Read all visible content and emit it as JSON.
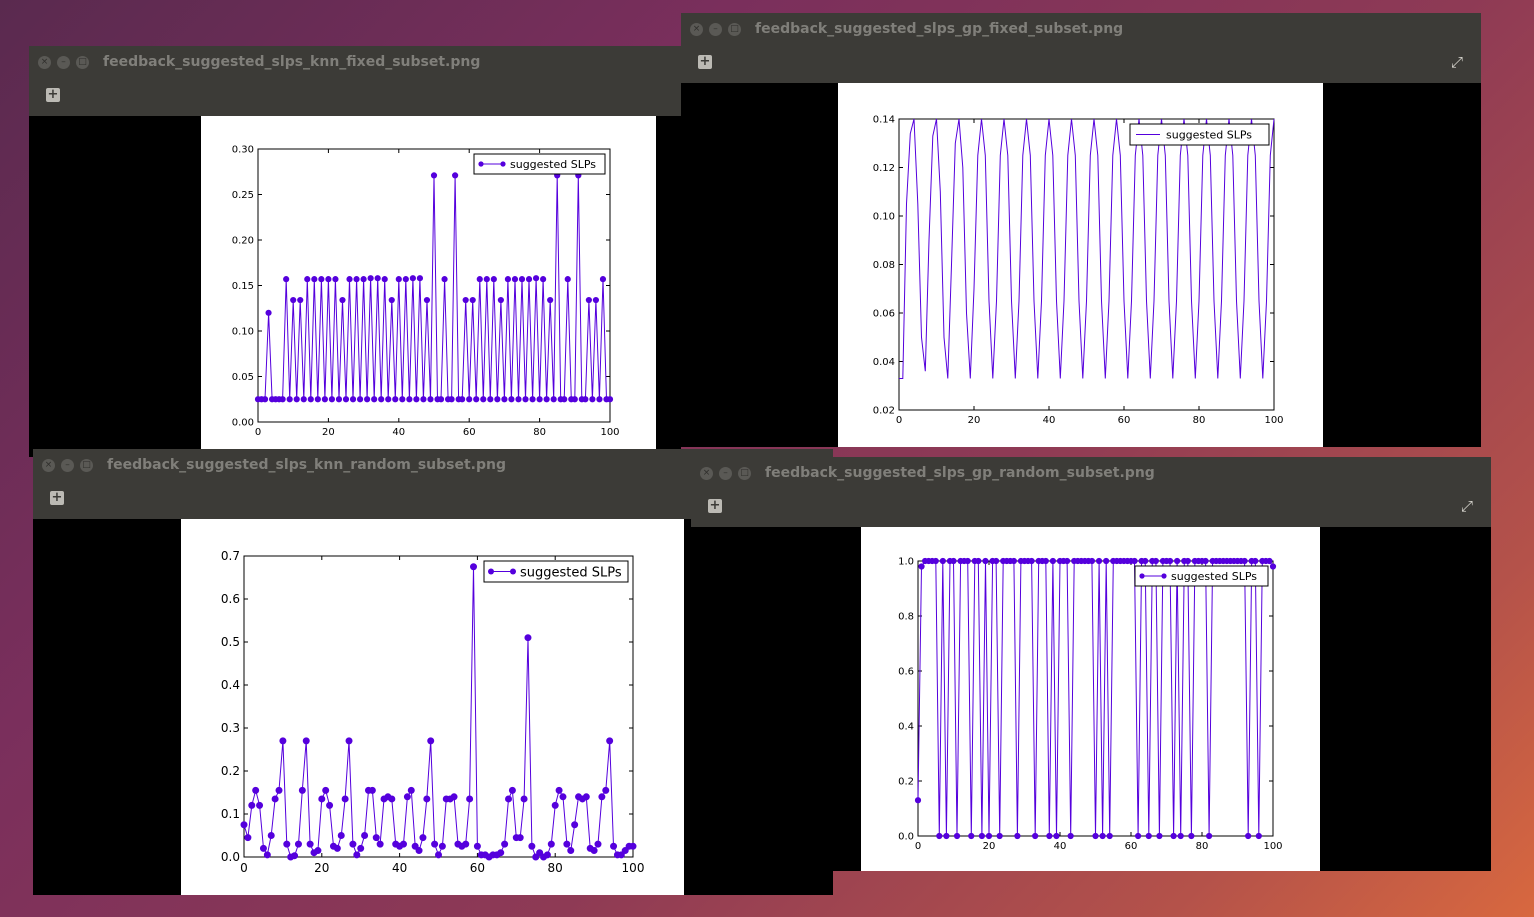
{
  "windows": [
    {
      "title": "feedback_suggested_slps_knn_fixed_subset.png",
      "chart_data": {
        "type": "line",
        "marker": "circle",
        "legend": "top-right",
        "series": [
          {
            "name": "suggested SLPs",
            "color": "#5500dd",
            "x": [
              0,
              1,
              2,
              3,
              4,
              5,
              6,
              7,
              8,
              9,
              10,
              11,
              12,
              13,
              14,
              15,
              16,
              17,
              18,
              19,
              20,
              21,
              22,
              23,
              24,
              25,
              26,
              27,
              28,
              29,
              30,
              31,
              32,
              33,
              34,
              35,
              36,
              37,
              38,
              39,
              40,
              41,
              42,
              43,
              44,
              45,
              46,
              47,
              48,
              49,
              50,
              51,
              52,
              53,
              54,
              55,
              56,
              57,
              58,
              59,
              60,
              61,
              62,
              63,
              64,
              65,
              66,
              67,
              68,
              69,
              70,
              71,
              72,
              73,
              74,
              75,
              76,
              77,
              78,
              79,
              80,
              81,
              82,
              83,
              84,
              85,
              86,
              87,
              88,
              89,
              90,
              91,
              92,
              93,
              94,
              95,
              96,
              97,
              98,
              99,
              100
            ],
            "values": [
              0.025,
              0.025,
              0.025,
              0.12,
              0.025,
              0.025,
              0.025,
              0.025,
              0.157,
              0.025,
              0.134,
              0.025,
              0.134,
              0.025,
              0.157,
              0.025,
              0.157,
              0.025,
              0.157,
              0.025,
              0.157,
              0.025,
              0.157,
              0.025,
              0.134,
              0.025,
              0.157,
              0.025,
              0.157,
              0.025,
              0.157,
              0.025,
              0.158,
              0.025,
              0.158,
              0.025,
              0.157,
              0.025,
              0.134,
              0.025,
              0.157,
              0.025,
              0.157,
              0.025,
              0.158,
              0.025,
              0.158,
              0.025,
              0.134,
              0.025,
              0.271,
              0.025,
              0.025,
              0.157,
              0.025,
              0.025,
              0.271,
              0.025,
              0.025,
              0.134,
              0.025,
              0.134,
              0.025,
              0.157,
              0.025,
              0.157,
              0.025,
              0.157,
              0.025,
              0.134,
              0.025,
              0.157,
              0.025,
              0.157,
              0.025,
              0.157,
              0.025,
              0.157,
              0.025,
              0.158,
              0.025,
              0.157,
              0.025,
              0.134,
              0.025,
              0.271,
              0.025,
              0.025,
              0.157,
              0.025,
              0.025,
              0.271,
              0.025,
              0.025,
              0.134,
              0.025,
              0.134,
              0.025,
              0.157,
              0.025,
              0.025
            ]
          }
        ],
        "xlim": [
          0,
          100
        ],
        "ylim": [
          0.0,
          0.3
        ],
        "xticks": [
          "0",
          "20",
          "40",
          "60",
          "80",
          "100"
        ],
        "yticks": [
          "0.00",
          "0.05",
          "0.10",
          "0.15",
          "0.20",
          "0.25",
          "0.30"
        ]
      }
    },
    {
      "title": "feedback_suggested_slps_gp_fixed_subset.png",
      "chart_data": {
        "type": "line",
        "marker": "none",
        "legend": "top-right",
        "series": [
          {
            "name": "suggested SLPs",
            "color": "#5500dd",
            "x": [
              0,
              1,
              2,
              3,
              4,
              5,
              6,
              7,
              8,
              9,
              10,
              11,
              12,
              13,
              14,
              15,
              16,
              17,
              18,
              19,
              20,
              21,
              22,
              23,
              24,
              25,
              26,
              27,
              28,
              29,
              30,
              31,
              32,
              33,
              34,
              35,
              36,
              37,
              38,
              39,
              40,
              41,
              42,
              43,
              44,
              45,
              46,
              47,
              48,
              49,
              50,
              51,
              52,
              53,
              54,
              55,
              56,
              57,
              58,
              59,
              60,
              61,
              62,
              63,
              64,
              65,
              66,
              67,
              68,
              69,
              70,
              71,
              72,
              73,
              74,
              75,
              76,
              77,
              78,
              79,
              80,
              81,
              82,
              83,
              84,
              85,
              86,
              87,
              88,
              89,
              90,
              91,
              92,
              93,
              94,
              95,
              96,
              97,
              98,
              99,
              100
            ],
            "values": [
              0.033,
              0.033,
              0.105,
              0.134,
              0.14,
              0.105,
              0.05,
              0.036,
              0.09,
              0.133,
              0.14,
              0.11,
              0.05,
              0.033,
              0.08,
              0.13,
              0.14,
              0.12,
              0.06,
              0.033,
              0.07,
              0.125,
              0.14,
              0.125,
              0.065,
              0.033,
              0.065,
              0.125,
              0.14,
              0.125,
              0.065,
              0.033,
              0.065,
              0.125,
              0.14,
              0.125,
              0.065,
              0.033,
              0.065,
              0.125,
              0.14,
              0.125,
              0.065,
              0.033,
              0.065,
              0.125,
              0.14,
              0.125,
              0.065,
              0.033,
              0.065,
              0.125,
              0.14,
              0.125,
              0.065,
              0.033,
              0.065,
              0.125,
              0.14,
              0.125,
              0.065,
              0.033,
              0.065,
              0.125,
              0.14,
              0.125,
              0.065,
              0.033,
              0.065,
              0.125,
              0.14,
              0.125,
              0.065,
              0.033,
              0.065,
              0.125,
              0.14,
              0.125,
              0.065,
              0.033,
              0.065,
              0.125,
              0.14,
              0.125,
              0.065,
              0.033,
              0.065,
              0.125,
              0.14,
              0.125,
              0.065,
              0.033,
              0.065,
              0.125,
              0.14,
              0.125,
              0.065,
              0.033,
              0.065,
              0.125,
              0.14
            ]
          }
        ],
        "xlim": [
          0,
          100
        ],
        "ylim": [
          0.02,
          0.14
        ],
        "xticks": [
          "0",
          "20",
          "40",
          "60",
          "80",
          "100"
        ],
        "yticks": [
          "0.02",
          "0.04",
          "0.06",
          "0.08",
          "0.10",
          "0.12",
          "0.14"
        ]
      }
    },
    {
      "title": "feedback_suggested_slps_knn_random_subset.png",
      "chart_data": {
        "type": "line",
        "marker": "circle",
        "legend": "top-right",
        "series": [
          {
            "name": "suggested SLPs",
            "color": "#5500dd",
            "x": [
              0,
              1,
              2,
              3,
              4,
              5,
              6,
              7,
              8,
              9,
              10,
              11,
              12,
              13,
              14,
              15,
              16,
              17,
              18,
              19,
              20,
              21,
              22,
              23,
              24,
              25,
              26,
              27,
              28,
              29,
              30,
              31,
              32,
              33,
              34,
              35,
              36,
              37,
              38,
              39,
              40,
              41,
              42,
              43,
              44,
              45,
              46,
              47,
              48,
              49,
              50,
              51,
              52,
              53,
              54,
              55,
              56,
              57,
              58,
              59,
              60,
              61,
              62,
              63,
              64,
              65,
              66,
              67,
              68,
              69,
              70,
              71,
              72,
              73,
              74,
              75,
              76,
              77,
              78,
              79,
              80,
              81,
              82,
              83,
              84,
              85,
              86,
              87,
              88,
              89,
              90,
              91,
              92,
              93,
              94,
              95,
              96,
              97,
              98,
              99,
              100
            ],
            "values": [
              0.075,
              0.045,
              0.12,
              0.155,
              0.12,
              0.02,
              0.005,
              0.05,
              0.135,
              0.155,
              0.27,
              0.03,
              0.0,
              0.003,
              0.03,
              0.155,
              0.27,
              0.03,
              0.01,
              0.015,
              0.135,
              0.155,
              0.12,
              0.025,
              0.02,
              0.05,
              0.135,
              0.27,
              0.03,
              0.005,
              0.02,
              0.05,
              0.155,
              0.155,
              0.045,
              0.03,
              0.135,
              0.14,
              0.135,
              0.03,
              0.025,
              0.03,
              0.14,
              0.155,
              0.025,
              0.015,
              0.045,
              0.135,
              0.27,
              0.03,
              0.005,
              0.025,
              0.135,
              0.135,
              0.14,
              0.03,
              0.025,
              0.03,
              0.135,
              0.675,
              0.025,
              0.005,
              0.005,
              0.0,
              0.005,
              0.005,
              0.01,
              0.03,
              0.135,
              0.155,
              0.045,
              0.045,
              0.135,
              0.51,
              0.025,
              0.0,
              0.01,
              0.0,
              0.005,
              0.03,
              0.12,
              0.155,
              0.14,
              0.03,
              0.015,
              0.075,
              0.14,
              0.135,
              0.14,
              0.02,
              0.015,
              0.03,
              0.14,
              0.155,
              0.27,
              0.025,
              0.005,
              0.005,
              0.015,
              0.025,
              0.025
            ]
          }
        ],
        "xlim": [
          0,
          100
        ],
        "ylim": [
          0.0,
          0.7
        ],
        "xticks": [
          "0",
          "20",
          "40",
          "60",
          "80",
          "100"
        ],
        "yticks": [
          "0.0",
          "0.1",
          "0.2",
          "0.3",
          "0.4",
          "0.5",
          "0.6",
          "0.7"
        ]
      }
    },
    {
      "title": "feedback_suggested_slps_gp_random_subset.png",
      "chart_data": {
        "type": "line",
        "marker": "circle",
        "legend": "top-right",
        "series": [
          {
            "name": "suggested SLPs",
            "color": "#5500dd",
            "x": [
              0,
              1,
              2,
              3,
              4,
              5,
              6,
              7,
              8,
              9,
              10,
              11,
              12,
              13,
              14,
              15,
              16,
              17,
              18,
              19,
              20,
              21,
              22,
              23,
              24,
              25,
              26,
              27,
              28,
              29,
              30,
              31,
              32,
              33,
              34,
              35,
              36,
              37,
              38,
              39,
              40,
              41,
              42,
              43,
              44,
              45,
              46,
              47,
              48,
              49,
              50,
              51,
              52,
              53,
              54,
              55,
              56,
              57,
              58,
              59,
              60,
              61,
              62,
              63,
              64,
              65,
              66,
              67,
              68,
              69,
              70,
              71,
              72,
              73,
              74,
              75,
              76,
              77,
              78,
              79,
              80,
              81,
              82,
              83,
              84,
              85,
              86,
              87,
              88,
              89,
              90,
              91,
              92,
              93,
              94,
              95,
              96,
              97,
              98,
              99,
              100
            ],
            "values": [
              0.13,
              0.98,
              1.0,
              1.0,
              1.0,
              1.0,
              0.0,
              1.0,
              0.0,
              1.0,
              1.0,
              0.0,
              1.0,
              1.0,
              1.0,
              0.0,
              1.0,
              1.0,
              0.0,
              1.0,
              0.0,
              1.0,
              1.0,
              0.0,
              1.0,
              1.0,
              1.0,
              1.0,
              0.0,
              1.0,
              1.0,
              1.0,
              1.0,
              0.0,
              1.0,
              1.0,
              1.0,
              0.0,
              1.0,
              0.0,
              1.0,
              1.0,
              1.0,
              0.0,
              1.0,
              1.0,
              1.0,
              1.0,
              1.0,
              1.0,
              0.0,
              1.0,
              0.0,
              1.0,
              0.0,
              1.0,
              1.0,
              1.0,
              1.0,
              1.0,
              1.0,
              1.0,
              0.0,
              1.0,
              1.0,
              0.0,
              1.0,
              1.0,
              0.0,
              1.0,
              1.0,
              1.0,
              0.0,
              1.0,
              0.0,
              1.0,
              1.0,
              0.0,
              1.0,
              1.0,
              1.0,
              1.0,
              0.0,
              1.0,
              1.0,
              1.0,
              1.0,
              1.0,
              1.0,
              1.0,
              1.0,
              1.0,
              1.0,
              0.0,
              1.0,
              1.0,
              0.0,
              1.0,
              1.0,
              1.0,
              0.98
            ]
          }
        ],
        "xlim": [
          0,
          100
        ],
        "ylim": [
          0.0,
          1.0
        ],
        "xticks": [
          "0",
          "20",
          "40",
          "60",
          "80",
          "100"
        ],
        "yticks": [
          "0.0",
          "0.2",
          "0.4",
          "0.6",
          "0.8",
          "1.0"
        ]
      }
    }
  ],
  "icons": {
    "close": "close-icon",
    "minimize": "minimize-icon",
    "maximize": "maximize-icon",
    "fullscreen": "fullscreen-icon",
    "add": "add-icon"
  }
}
